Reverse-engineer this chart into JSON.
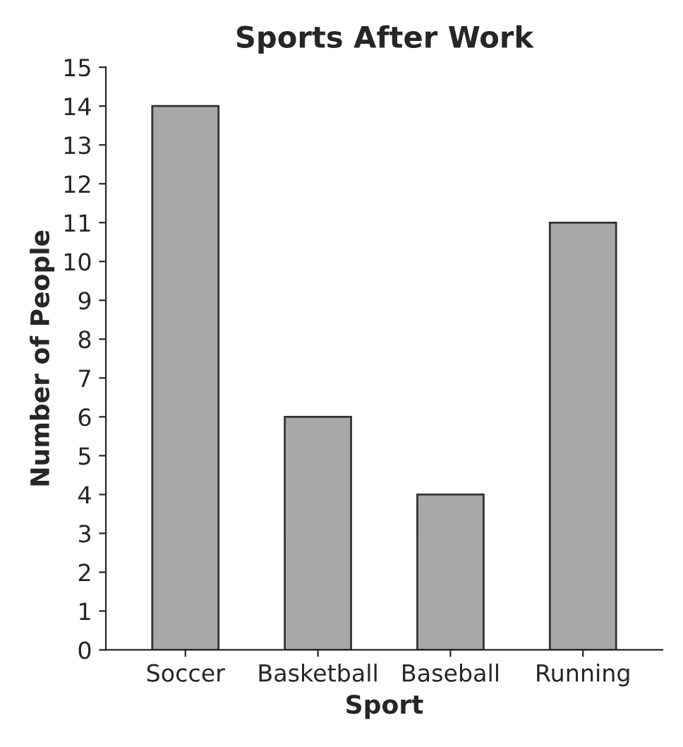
{
  "chart_data": {
    "type": "bar",
    "title": "Sports After Work",
    "xlabel": "Sport",
    "ylabel": "Number of People",
    "categories": [
      "Soccer",
      "Basketball",
      "Baseball",
      "Running"
    ],
    "values": [
      14,
      6,
      4,
      11
    ],
    "color": "#a8a8a8",
    "ylim": [
      0,
      15
    ],
    "yticks": [
      0,
      1,
      2,
      3,
      4,
      5,
      6,
      7,
      8,
      9,
      10,
      11,
      12,
      13,
      14,
      15
    ],
    "grid": false
  }
}
